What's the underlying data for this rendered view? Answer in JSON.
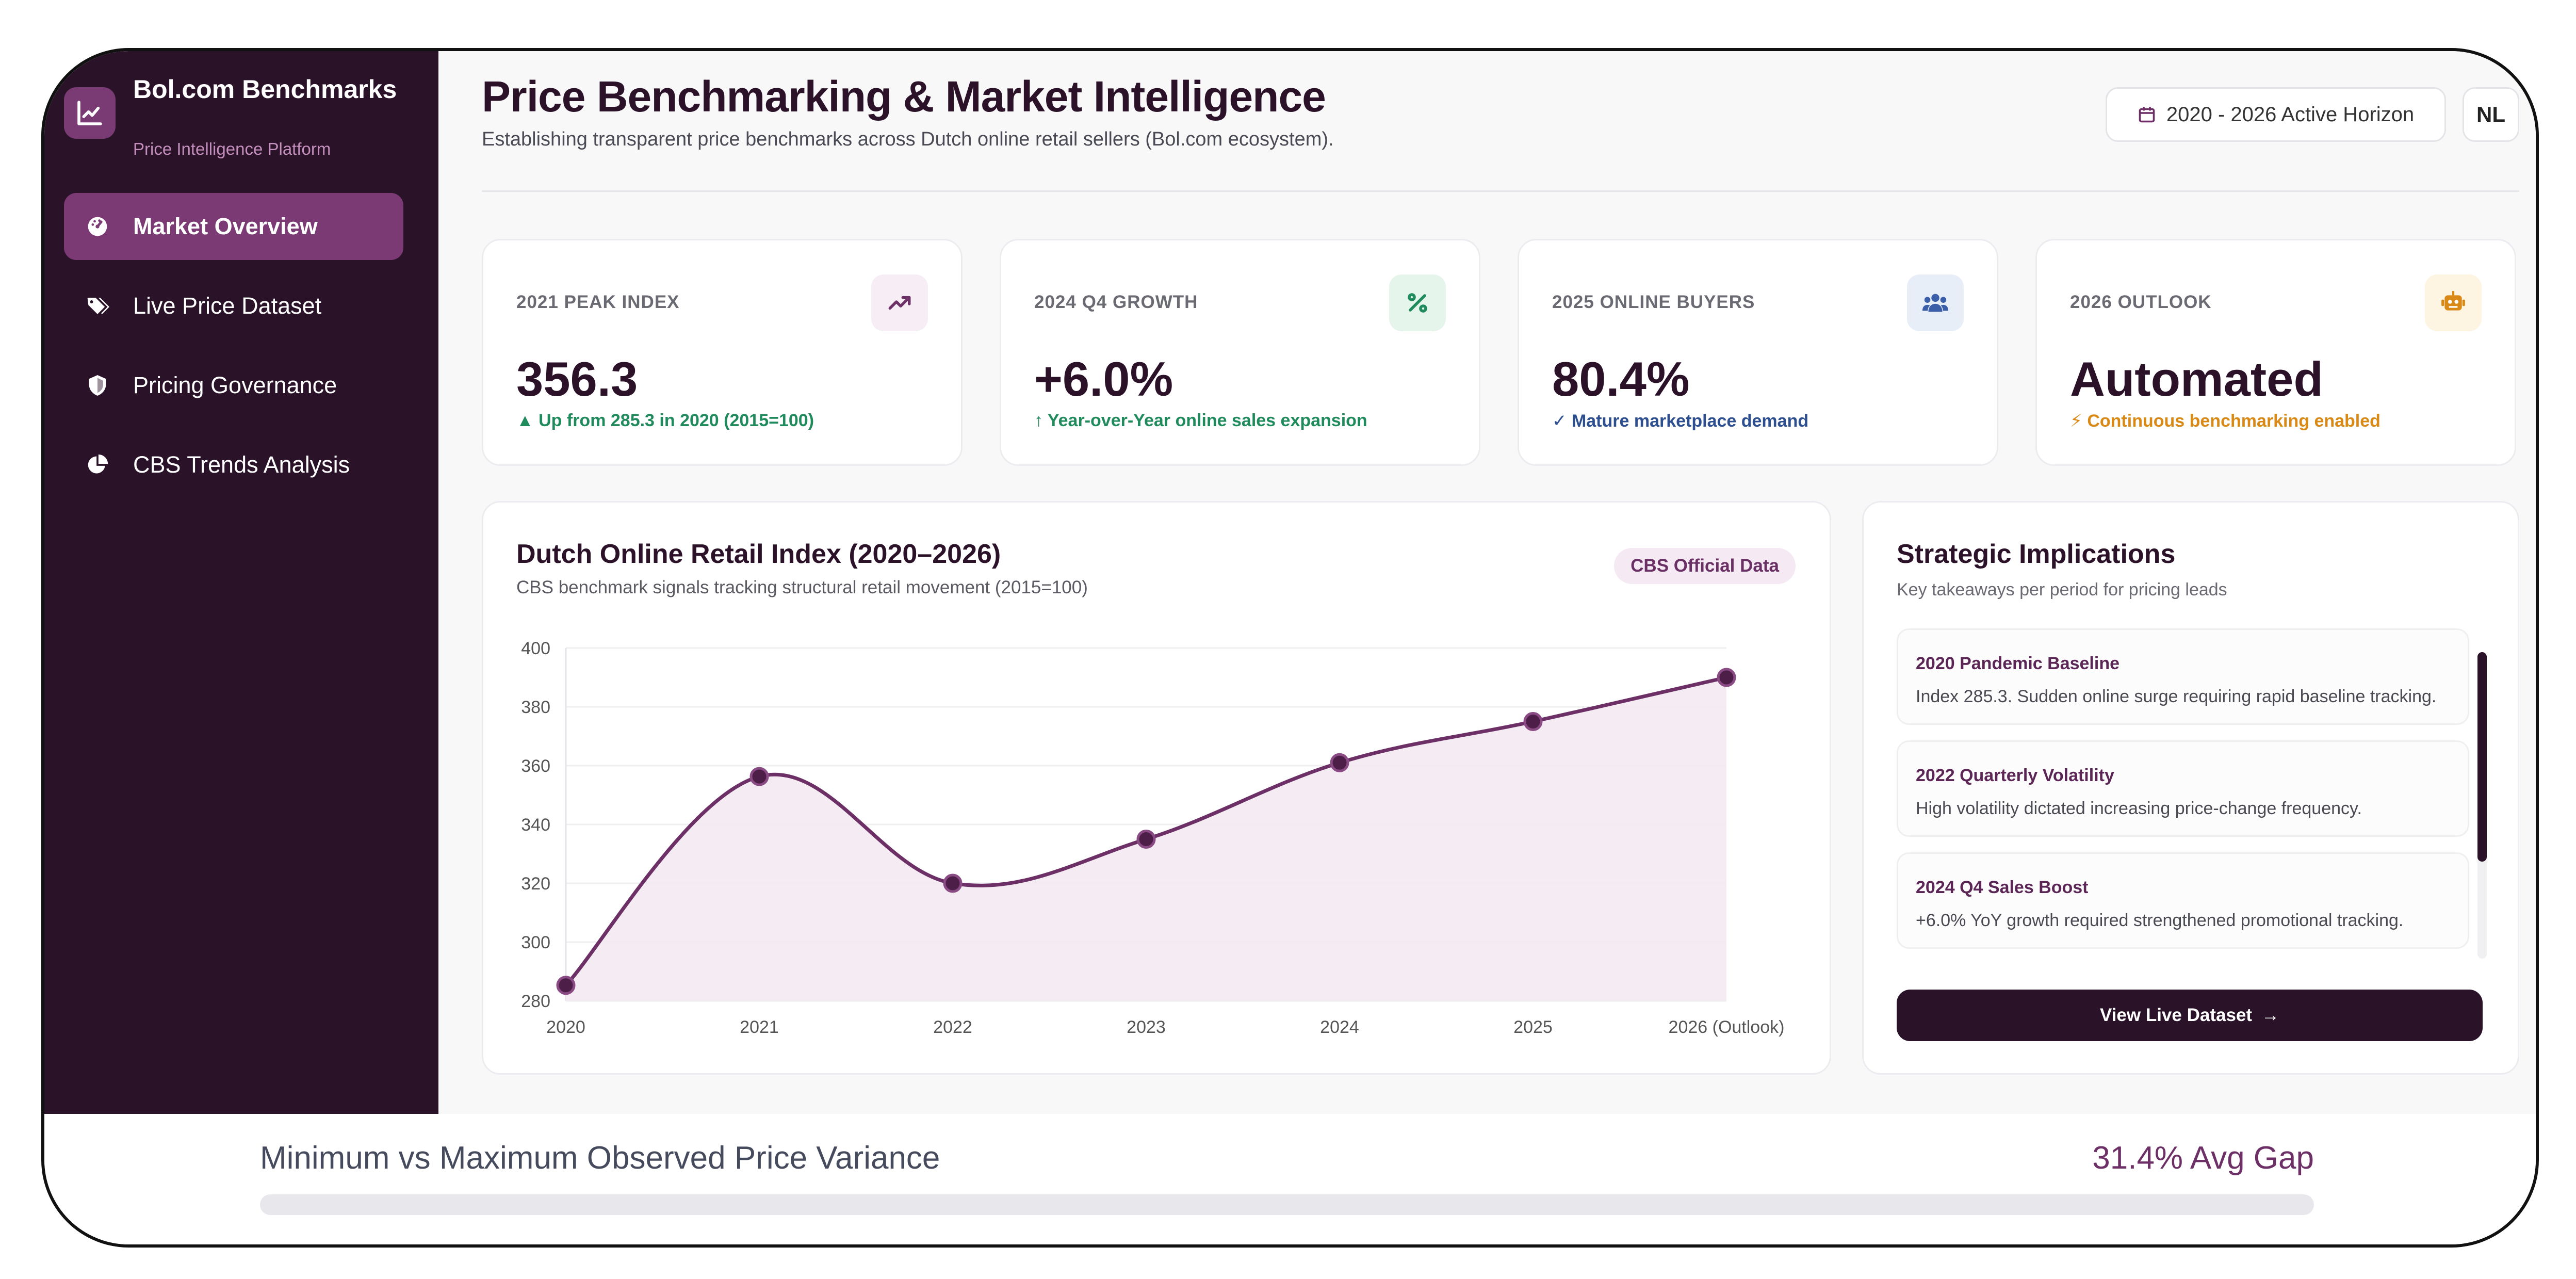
{
  "brand": {
    "title": "Bol.com Benchmarks",
    "subtitle": "Price Intelligence Platform",
    "logo_icon": "line-chart-icon"
  },
  "sidebar": {
    "items": [
      {
        "label": "Market Overview",
        "icon": "dashboard-gauge-icon",
        "active": true
      },
      {
        "label": "Live Price Dataset",
        "icon": "tags-icon",
        "active": false
      },
      {
        "label": "Pricing Governance",
        "icon": "shield-icon",
        "active": false
      },
      {
        "label": "CBS Trends Analysis",
        "icon": "pie-chart-icon",
        "active": false
      }
    ]
  },
  "header": {
    "title": "Price Benchmarking & Market Intelligence",
    "subtitle": "Establishing transparent price benchmarks across Dutch online retail sellers (Bol.com ecosystem).",
    "horizon_label": "2020 - 2026 Active Horizon",
    "language": "NL"
  },
  "stats": [
    {
      "label": "2021 PEAK INDEX",
      "value": "356.3",
      "note": "Up from 285.3 in 2020 (2015=100)",
      "icon": "trend-up-icon",
      "accent": "#1f8a5b",
      "icon_bg": "#f6edf5",
      "icon_color": "#6c2f66"
    },
    {
      "label": "2024 Q4 GROWTH",
      "value": "+6.0%",
      "note": "Year-over-Year online sales expansion",
      "icon": "percent-icon",
      "accent": "#1f8a5b",
      "icon_bg": "#e6f5ec",
      "icon_color": "#1f8a5b"
    },
    {
      "label": "2025 ONLINE BUYERS",
      "value": "80.4%",
      "note": "Mature marketplace demand",
      "icon": "users-icon",
      "accent": "#2e4f8f",
      "icon_bg": "#e8eef8",
      "icon_color": "#3a5fa8"
    },
    {
      "label": "2026 OUTLOOK",
      "value": "Automated",
      "note": "Continuous benchmarking enabled",
      "icon": "robot-icon",
      "accent": "#d98a16",
      "icon_bg": "#fdf4e2",
      "icon_color": "#d98a16"
    }
  ],
  "chart_card": {
    "title": "Dutch Online Retail Index (2020–2026)",
    "subtitle": "CBS benchmark signals tracking structural retail movement (2015=100)",
    "badge": "CBS Official Data"
  },
  "chart_data": {
    "type": "line",
    "title": "Dutch Online Retail Index (2020–2026)",
    "categories": [
      "2020",
      "2021",
      "2022",
      "2023",
      "2024",
      "2025",
      "2026 (Outlook)"
    ],
    "series": [
      {
        "values": [
          285.3,
          356.3,
          320,
          335,
          361,
          375,
          390
        ]
      }
    ],
    "ylim": [
      280,
      400
    ],
    "yticks": [
      280,
      300,
      320,
      340,
      360,
      380,
      400
    ],
    "area_fill": true,
    "grid": true,
    "color": "#6c2f66"
  },
  "strategic": {
    "title": "Strategic Implications",
    "subtitle": "Key takeaways per period for pricing leads",
    "items": [
      {
        "title": "2020 Pandemic Baseline",
        "text": "Index 285.3. Sudden online surge requiring rapid baseline tracking."
      },
      {
        "title": "2022 Quarterly Volatility",
        "text": "High volatility dictated increasing price-change frequency."
      },
      {
        "title": "2024 Q4 Sales Boost",
        "text": "+6.0% YoY growth required strengthened promotional tracking."
      }
    ],
    "button_label": "View Live Dataset"
  },
  "variance": {
    "title": "Minimum vs Maximum Observed Price Variance",
    "value": "31.4% Avg Gap"
  }
}
